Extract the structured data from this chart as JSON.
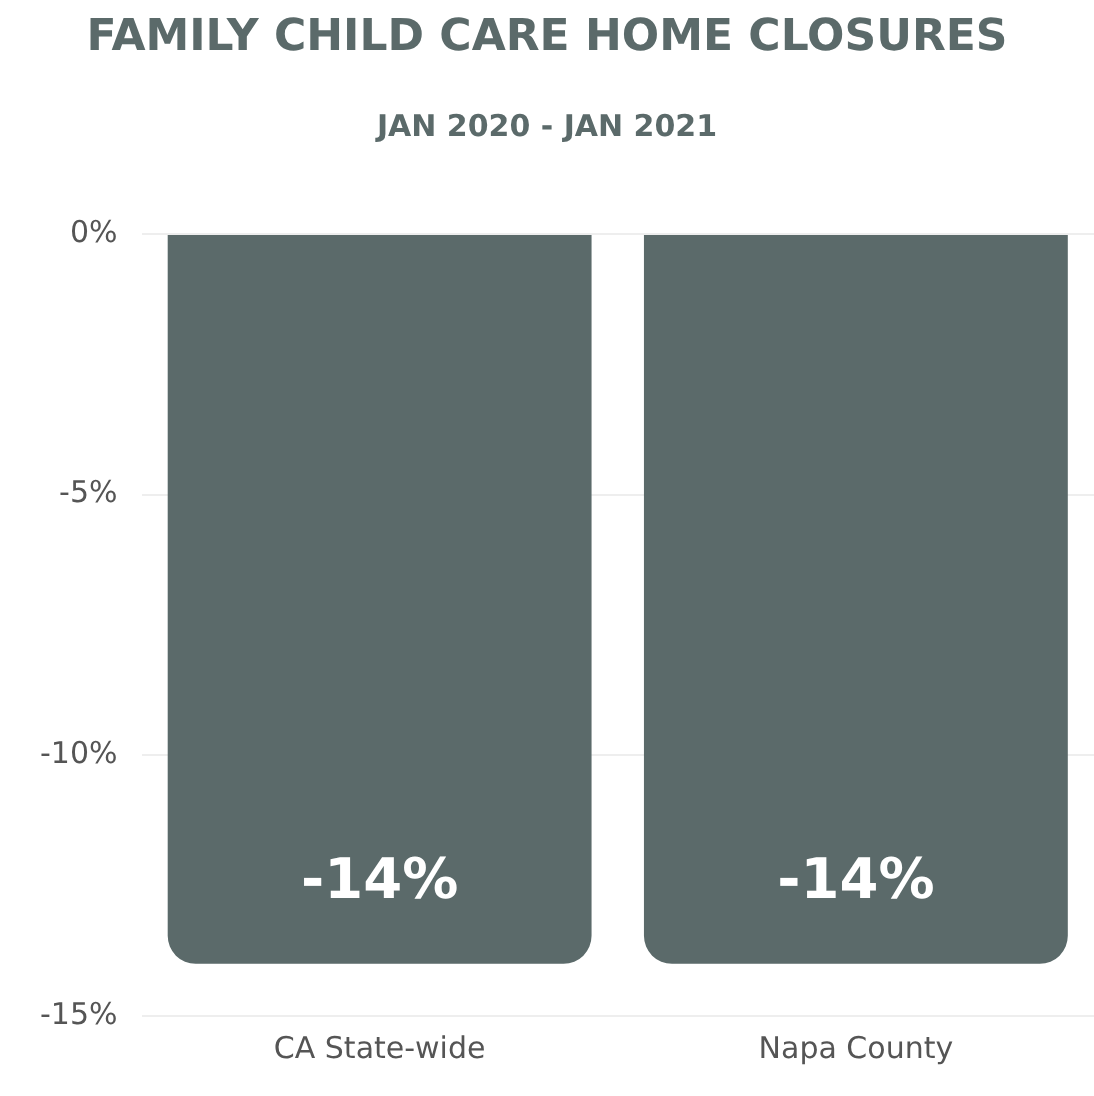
{
  "chart_data": {
    "type": "bar",
    "title": "FAMILY CHILD CARE HOME CLOSURES",
    "subtitle": "JAN 2020 - JAN 2021",
    "categories": [
      "CA State-wide",
      "Napa County"
    ],
    "values": [
      -14,
      -14
    ],
    "color": "#5b6a6a",
    "value_labels": [
      "-14%",
      "-14%"
    ],
    "ylim": [
      -15,
      0
    ],
    "yticks": [
      {
        "value": -15,
        "label": "-15%"
      },
      {
        "value": -10,
        "label": "-10%"
      },
      {
        "value": -5,
        "label": "-5%"
      },
      {
        "value": 0,
        "label": "0%"
      }
    ],
    "grid": "y",
    "legend": false
  }
}
